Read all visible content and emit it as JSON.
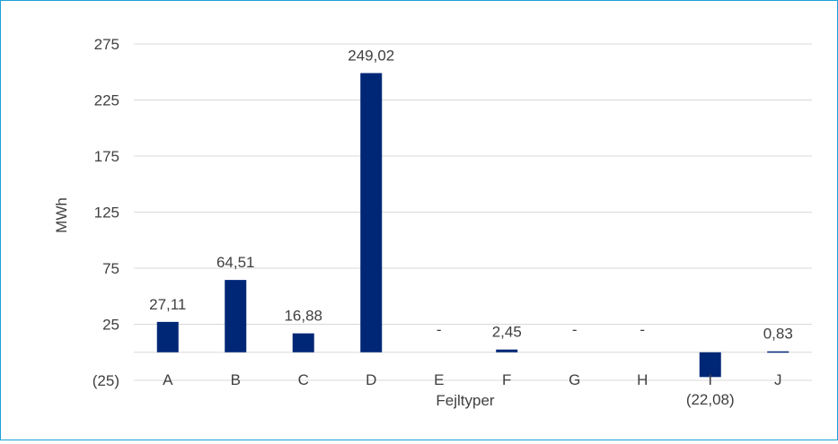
{
  "chart_data": {
    "type": "bar",
    "categories": [
      "A",
      "B",
      "C",
      "D",
      "E",
      "F",
      "G",
      "H",
      "I",
      "J"
    ],
    "values": [
      27.11,
      64.51,
      16.88,
      249.02,
      0,
      2.45,
      0,
      0,
      -22.08,
      0.83
    ],
    "data_labels": [
      "27,11",
      "64,51",
      "16,88",
      "249,02",
      "-",
      "2,45",
      "-",
      "-",
      "(22,08)",
      "0,83"
    ],
    "y_ticks": [
      -25,
      25,
      75,
      125,
      175,
      225,
      275
    ],
    "y_tick_labels": [
      "(25)",
      "25",
      "75",
      "125",
      "175",
      "225",
      "275"
    ],
    "ylim": [
      -25,
      275
    ],
    "xlabel": "Fejltyper",
    "ylabel": "MWh",
    "grid": true,
    "colors": {
      "bar": "#002776",
      "grid": "#d9d9d9",
      "text": "#404040",
      "frame": "#1ba1d6"
    }
  }
}
